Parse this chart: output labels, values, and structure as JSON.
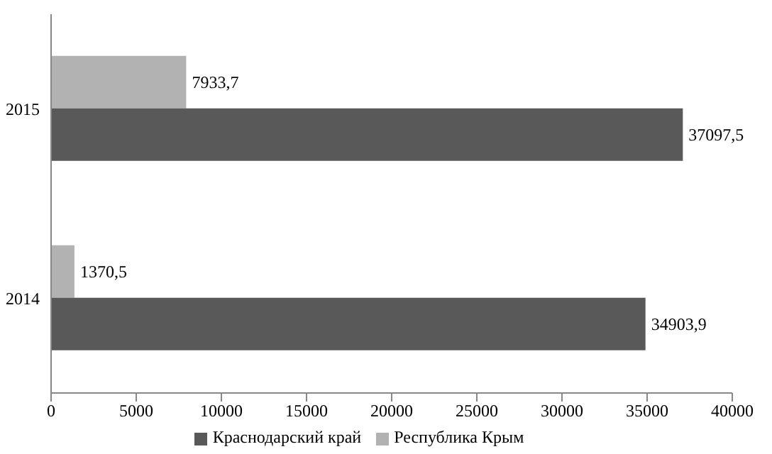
{
  "chart_data": {
    "type": "bar",
    "orientation": "horizontal",
    "categories": [
      "2015",
      "2014"
    ],
    "series": [
      {
        "name": "Республика Крым",
        "color": "#b2b2b2",
        "values": [
          7933.7,
          1370.5
        ],
        "value_labels": [
          "7933,7",
          "1370,5"
        ]
      },
      {
        "name": "Краснодарский край",
        "color": "#595959",
        "values": [
          37097.5,
          34903.9
        ],
        "value_labels": [
          "37097,5",
          "34903,9"
        ]
      }
    ],
    "xlim": [
      0,
      40000
    ],
    "xticks": [
      0,
      5000,
      10000,
      15000,
      20000,
      25000,
      30000,
      35000,
      40000
    ],
    "grid": false,
    "legend": "bottom"
  }
}
